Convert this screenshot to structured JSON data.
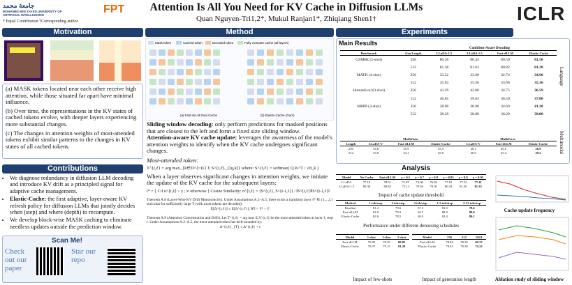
{
  "header": {
    "logo1": "MOHAMED BIN ZAYED UNIVERSITY OF ARTIFICIAL INTELLIGENCE",
    "logo2": "FPT",
    "title": "Attention Is All You Need for KV Cache in Diffusion LLMs",
    "authors": "Quan Nguyen-Tri1,2*, Mukul Ranjan1*, Zhiqiang Shen1†",
    "note": "* Equal Contribution  †Corresponding author",
    "conference": "ICLR"
  },
  "motivation": {
    "title": "Motivation",
    "points": [
      "(a) MASK tokens located near each other receive high attention, while those situated far apart have minimal influence.",
      "(b) Over time, the representations in the KV states of cached tokens evolve, with deeper layers experiencing more substantial changes.",
      "(c) The changes in attention weights of most-attended tokens exhibit similar patterns to the changes in KV states of all cached tokens."
    ]
  },
  "contributions": {
    "title": "Contributions",
    "items": [
      {
        "lead": "",
        "text": "We diagnose redundancy in diffusion LLM decoding and introduce KV drift as a principled signal for adaptive cache management."
      },
      {
        "lead": "Elastic-Cache:",
        "text": "the first adaptive, layer-aware KV refresh policy for diffusion LLMs that jointly decides when (step) and where (depth) to recompute."
      },
      {
        "lead": "",
        "text": "We develop block-wise MASK caching to eliminate needless updates outside the prediction window."
      }
    ]
  },
  "scan": {
    "title": "Scan Me!",
    "paper": "Check out our paper",
    "repo": "Star our repo"
  },
  "method": {
    "title": "Method",
    "legend": [
      "Mask token",
      "Cached token",
      "Decoded token",
      "Fully compute cache (all layers)"
    ],
    "caption_a": "(a) Fast-dLLM Dual Cache",
    "caption_b": "(b) Elastic-Cache (Ours)",
    "sliding_lead": "Sliding window decoding:",
    "sliding_text": "only perform predictions for masked positions that are closest to the left and form a fixed size sliding window.",
    "update_lead": "Attention-aware KV cache update:",
    "update_text": "leverages the awareness of the model's attention weights to identify when the KV cache undergoes significant changes.",
    "most_attended": "Most-attended token:",
    "formula1": "T^{t,ℓ} = arg max_{k∈D^{<t}} Σ S^{t,ℓ}_{[q,k]}   where: S^{t,ℓ} = softmax( Q K^T / √d_k )",
    "when_text": "When a layer observes significant changes in attention weights, we initiate the update of the KV cache for the subsequent layers:",
    "formula2": "l* = { ℓ  if σ^{t,ℓ} < γ ;  ∞ otherwise }     Cosine Similarity: σ^{t,ℓ} = ⟨S^{t,ℓ}, S^{t-1,ℓ}⟩ / ‖S^{t,ℓ}‖‖S^{t-1,ℓ}‖",
    "thm1": "Theorem A.8 (Layer-Wise KV Drift Monotonicity). Under Assumptions A.2–A.5, there exists a transition layer ℓ* ∈ {1,...,L} such that for sufficiently large T (with most tokens are decoded):",
    "thm1_eq": "E[Δ^{t,ℓ}] ≤ E[Δ^{t,ℓ'}],   ∀ℓ < ℓ* < ℓ'",
    "thm2": "Theorem A.9 (Attention Concentration and Drift). Let T^{t,ℓ} = arg max Σ S^{t,ℓ} be the most-attended token at layer ℓ, step t. Under Assumptions A.2–A.5, the most-attended token has drift bounded by:",
    "thm2_eq": "Δ^{t,ℓ}_{T} ≤ Δ^{t,ℓ} + ε"
  },
  "experiments": {
    "title": "Experiments",
    "main_title": "Main Results",
    "group": "Confident-Aware Decoding",
    "side1": "Language",
    "side2": "Multimodal",
    "main_header": [
      "Benchmark",
      "Gen Length",
      "LLaDA-1.5",
      "LLaDA-1.5",
      "Fast-dLLM",
      "Elastic-Cache"
    ],
    "main_rows": [
      [
        "GSM8K (5-shot)",
        "256",
        "80.36",
        "80.43",
        "80.59",
        "81.50"
      ],
      [
        "",
        "512",
        "81.30",
        "81.63",
        "80.82",
        "81.28"
      ],
      [
        "MATH (4-shot)",
        "256",
        "33.52",
        "33.60",
        "32.74",
        "34.96"
      ],
      [
        "",
        "512",
        "35.63",
        "35.56",
        "33.68",
        "35.36"
      ],
      [
        "HumanEval (0-shot)",
        "256",
        "43.29",
        "42.68",
        "34.75",
        "36.59"
      ],
      [
        "",
        "512",
        "40.85",
        "39.63",
        "36.59",
        "37.80"
      ],
      [
        "MBPP (3-shot)",
        "256",
        "38.00",
        "38.00",
        "34.60",
        "41.20"
      ],
      [
        "",
        "512",
        "38.20",
        "38.00",
        "36.20",
        "39.00"
      ]
    ],
    "mm_header": [
      "Length",
      "LLaDA-V",
      "Fast-dLLM",
      "Elastic-Cache",
      "LLaDA-V",
      "Fast-dLLM",
      "Elastic-Cache"
    ],
    "mm_group": [
      "MathVista",
      "MathVerse"
    ],
    "mm_rows": [
      [
        "256",
        "54.6",
        "55.9",
        "55.9",
        "26.1",
        "26.0",
        "26.9"
      ],
      [
        "512",
        "53.0",
        "54.1",
        "55.8",
        "26.9",
        "25.3",
        "29.2"
      ]
    ]
  },
  "analysis": {
    "title": "Analysis",
    "thr_header": [
      "Model",
      "No Cache",
      "Fast-dLLM",
      "γ = 0.5",
      "γ = 0.7",
      "γ = 0.8",
      "γ = 0.85",
      "γ = 0.9",
      "γ = 0.95"
    ],
    "thr_rows": [
      [
        "LLaDA",
        "77.10",
        "78.01",
        "71.87",
        "74.00",
        "76.95",
        "77.18",
        "77.33",
        "77.41"
      ],
      [
        "LLaDA-1.5",
        "80.36",
        "80.82",
        "75.13",
        "78.04",
        "79.30",
        "80.44",
        "81.50",
        "81.35"
      ]
    ],
    "thr_caption": "Impact of cache update threshold",
    "sched_header": [
      "Method",
      "1 tok/step",
      "2 tok/step",
      "4 tok/step",
      "1-2 tok/step",
      "2-12 tok/step"
    ],
    "sched_rows": [
      [
        "Baseline",
        "81.4",
        "79.6",
        "67.5",
        "81.0",
        "79.6"
      ],
      [
        "Fast-dLLM",
        "81.0",
        "79.3",
        "64.7",
        "80.8",
        "80.0"
      ],
      [
        "Elastic-Cache",
        "82.6",
        "78.5",
        "69.9",
        "81.4",
        "80.1"
      ]
    ],
    "sched_caption": "Performance under different denoising schedules",
    "shot_header": [
      "Model",
      "1-shot",
      "3-shot",
      "5-shot"
    ],
    "shot_rows": [
      [
        "Fast-dLLM",
        "75.89",
        "78.39",
        "80.82"
      ],
      [
        "Elastic-Cache",
        "75.97",
        "79.15",
        "81.28"
      ]
    ],
    "shot_caption": "Impact of few-shots",
    "len_header": [
      "Model",
      "256",
      "512",
      "1024"
    ],
    "len_rows": [
      [
        "Fast-dLLM",
        "78.84",
        "78.39",
        "69.37"
      ],
      [
        "Elastic-Cache",
        "79.61",
        "79.30",
        "74.22"
      ]
    ],
    "len_caption": "Impact of generation length",
    "freq_caption": "Cache update frequency",
    "ablation_caption": "Ablation study of sliding window"
  }
}
